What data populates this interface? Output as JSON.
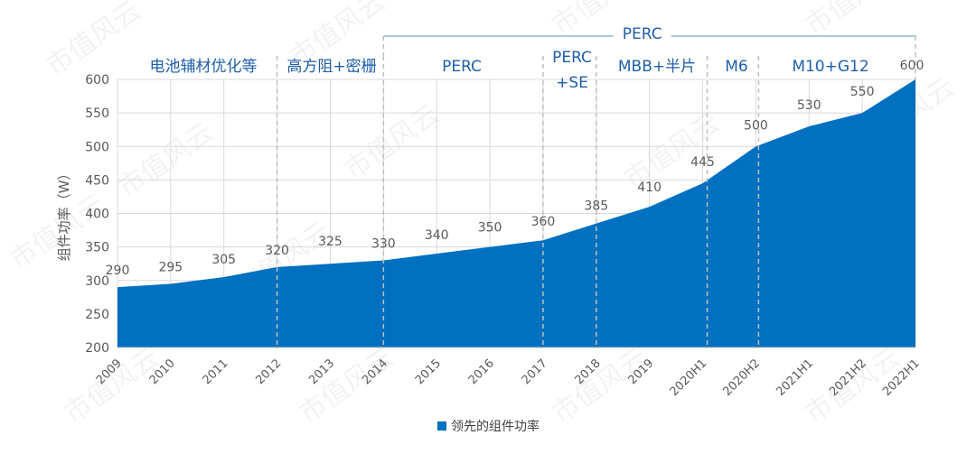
{
  "chart_data": {
    "type": "area",
    "categories": [
      "2009",
      "2010",
      "2011",
      "2012",
      "2013",
      "2014",
      "2015",
      "2016",
      "2017",
      "2018",
      "2019",
      "2020H1",
      "2020H2",
      "2021H1",
      "2021H2",
      "2022H1"
    ],
    "series": [
      {
        "name": "领先的组件功率",
        "values": [
          290,
          295,
          305,
          320,
          325,
          330,
          340,
          350,
          360,
          385,
          410,
          445,
          500,
          530,
          550,
          600
        ]
      }
    ],
    "ylabel": "组件功率（W）",
    "ylim": [
      200,
      600
    ],
    "yticks": [
      200,
      250,
      300,
      350,
      400,
      450,
      500,
      550,
      600
    ],
    "grid": true,
    "legend_position": "bottom-center",
    "colors": {
      "fill": "#0070c0",
      "grid": "#d9d9d9",
      "divider": "#bfbfbf",
      "tech_label": "#1f5fa8",
      "top_bracket": "#8fb4dc",
      "text": "#595959"
    },
    "tech_phases": [
      {
        "label": "电池辅材优化等",
        "from": "2009",
        "to": "2012"
      },
      {
        "label": "高方阻+密栅",
        "from": "2012",
        "to": "2014"
      },
      {
        "label": "PERC",
        "from": "2014",
        "to": "2017"
      },
      {
        "label": "PERC\n+SE",
        "from": "2017",
        "to": "2018"
      },
      {
        "label": "MBB+半片",
        "from": "2018",
        "to": "2020H1"
      },
      {
        "label": "M6",
        "from": "2020H1",
        "to": "2020H2"
      },
      {
        "label": "M10+G12",
        "from": "2020H2",
        "to": "2022H1"
      }
    ],
    "top_bracket": {
      "label": "PERC",
      "from": "2014",
      "to": "2022H1"
    },
    "watermark": "市值风云"
  }
}
